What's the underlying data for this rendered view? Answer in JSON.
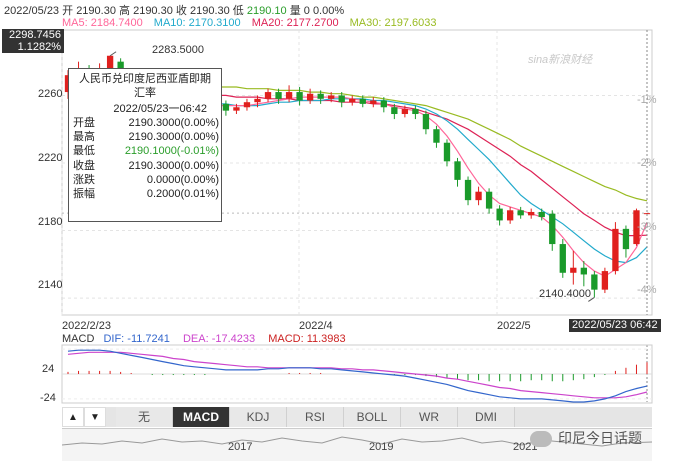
{
  "header": {
    "date": "2022/05/23",
    "open_label": "开",
    "open": "2190.30",
    "high_label": "高",
    "high": "2190.30",
    "close_label": "收",
    "close": "2190.30",
    "low_label": "低",
    "low": "2190.10",
    "vol_label": "量",
    "vol": "0",
    "pct": "0.00%"
  },
  "ma": {
    "ma5": {
      "label": "MA5: 2184.7400",
      "color": "#ff6699"
    },
    "ma10": {
      "label": "MA10: 2170.3100",
      "color": "#22aacc"
    },
    "ma20": {
      "label": "MA20: 2177.2700",
      "color": "#dd2255"
    },
    "ma30": {
      "label": "MA30: 2197.6033",
      "color": "#99bb22"
    }
  },
  "y_axis": {
    "top_value": "2298.7456",
    "top_pct": "1.1282%",
    "ticks": [
      "2260",
      "2220",
      "2180",
      "2140"
    ],
    "pct_ticks": [
      "-1%",
      "-2%",
      "-3%",
      "-4%"
    ]
  },
  "x_axis": {
    "ticks": [
      "2022/2/23",
      "2022/4",
      "2022/5"
    ],
    "last_date": "2022/05/23 06:42"
  },
  "annotations": {
    "max_label": "2283.5000",
    "min_label": "2140.4000"
  },
  "tooltip": {
    "title_line1": "人民币兑印度尼西亚盾即期",
    "title_line2": "汇率",
    "datetime": "2022/05/23一06:42",
    "rows": [
      {
        "k": "开盘",
        "v": "2190.3000(0.00%)"
      },
      {
        "k": "最高",
        "v": "2190.3000(0.00%)"
      },
      {
        "k": "最低",
        "v": "2190.1000(-0.01%)"
      },
      {
        "k": "收盘",
        "v": "2190.3000(0.00%)"
      },
      {
        "k": "涨跌",
        "v": "0.0000(0.00%)"
      },
      {
        "k": "振幅",
        "v": "0.2000(0.01%)"
      }
    ]
  },
  "macd": {
    "label": "MACD",
    "dif": "DIF: -11.7241",
    "dea": "DEA: -17.4233",
    "macd": "MACD: 11.3983",
    "ticks": [
      "24",
      "-24"
    ]
  },
  "tabs": {
    "prev": "▲",
    "next": "▼",
    "items": [
      "无",
      "MACD",
      "KDJ",
      "RSI",
      "BOLL",
      "WR",
      "DMI"
    ],
    "active": "MACD"
  },
  "overview": {
    "years": [
      "2017",
      "2019",
      "2021"
    ]
  },
  "watermark": "sina新浪财经",
  "wechat_label": "印尼今日话题",
  "colors": {
    "up": "#e0201e",
    "down": "#1a9a2a",
    "ma5": "#ff6699",
    "ma10": "#22aacc",
    "ma20": "#dd2255",
    "ma30": "#99bb22",
    "dif": "#3366cc",
    "dea": "#cc44cc"
  },
  "chart_data": {
    "type": "candlestick",
    "ylim": [
      2130,
      2298.7456
    ],
    "candles": [
      {
        "o": 2262,
        "c": 2272,
        "h": 2275,
        "l": 2258
      },
      {
        "o": 2270,
        "c": 2275,
        "h": 2280,
        "l": 2266
      },
      {
        "o": 2273,
        "c": 2268,
        "h": 2278,
        "l": 2264
      },
      {
        "o": 2268,
        "c": 2276,
        "h": 2279,
        "l": 2265
      },
      {
        "o": 2276,
        "c": 2283.5,
        "h": 2283.5,
        "l": 2271
      },
      {
        "o": 2280,
        "c": 2270,
        "h": 2282,
        "l": 2266
      },
      {
        "o": 2270,
        "c": 2262,
        "h": 2273,
        "l": 2258
      },
      {
        "o": 2262,
        "c": 2256,
        "h": 2265,
        "l": 2253
      },
      {
        "o": 2256,
        "c": 2254,
        "h": 2259,
        "l": 2251
      },
      {
        "o": 2254,
        "c": 2256,
        "h": 2258,
        "l": 2251
      },
      {
        "o": 2256,
        "c": 2252,
        "h": 2258,
        "l": 2249
      },
      {
        "o": 2252,
        "c": 2253,
        "h": 2256,
        "l": 2249
      },
      {
        "o": 2253,
        "c": 2256,
        "h": 2258,
        "l": 2251
      },
      {
        "o": 2256,
        "c": 2252,
        "h": 2258,
        "l": 2250
      },
      {
        "o": 2252,
        "c": 2255,
        "h": 2257,
        "l": 2250
      },
      {
        "o": 2255,
        "c": 2251,
        "h": 2257,
        "l": 2248
      },
      {
        "o": 2251,
        "c": 2253,
        "h": 2255,
        "l": 2249
      },
      {
        "o": 2253,
        "c": 2256,
        "h": 2258,
        "l": 2251
      },
      {
        "o": 2256,
        "c": 2258,
        "h": 2260,
        "l": 2253
      },
      {
        "o": 2258,
        "c": 2262,
        "h": 2264,
        "l": 2256
      },
      {
        "o": 2262,
        "c": 2258,
        "h": 2264,
        "l": 2255
      },
      {
        "o": 2258,
        "c": 2262,
        "h": 2266,
        "l": 2256
      },
      {
        "o": 2262,
        "c": 2257,
        "h": 2265,
        "l": 2254
      },
      {
        "o": 2257,
        "c": 2261,
        "h": 2264,
        "l": 2255
      },
      {
        "o": 2261,
        "c": 2258,
        "h": 2263,
        "l": 2255
      },
      {
        "o": 2258,
        "c": 2260,
        "h": 2262,
        "l": 2256
      },
      {
        "o": 2260,
        "c": 2256,
        "h": 2262,
        "l": 2253
      },
      {
        "o": 2256,
        "c": 2258,
        "h": 2260,
        "l": 2254
      },
      {
        "o": 2258,
        "c": 2255,
        "h": 2260,
        "l": 2253
      },
      {
        "o": 2255,
        "c": 2257,
        "h": 2259,
        "l": 2253
      },
      {
        "o": 2257,
        "c": 2253,
        "h": 2259,
        "l": 2250
      },
      {
        "o": 2253,
        "c": 2249,
        "h": 2255,
        "l": 2246
      },
      {
        "o": 2249,
        "c": 2252,
        "h": 2254,
        "l": 2247
      },
      {
        "o": 2252,
        "c": 2249,
        "h": 2254,
        "l": 2246
      },
      {
        "o": 2249,
        "c": 2240,
        "h": 2251,
        "l": 2237
      },
      {
        "o": 2240,
        "c": 2232,
        "h": 2242,
        "l": 2229
      },
      {
        "o": 2232,
        "c": 2221,
        "h": 2234,
        "l": 2218
      },
      {
        "o": 2221,
        "c": 2210,
        "h": 2223,
        "l": 2206
      },
      {
        "o": 2210,
        "c": 2198,
        "h": 2212,
        "l": 2195
      },
      {
        "o": 2198,
        "c": 2203,
        "h": 2206,
        "l": 2195
      },
      {
        "o": 2203,
        "c": 2193,
        "h": 2205,
        "l": 2190
      },
      {
        "o": 2193,
        "c": 2186,
        "h": 2195,
        "l": 2183
      },
      {
        "o": 2186,
        "c": 2192,
        "h": 2194,
        "l": 2184
      },
      {
        "o": 2192,
        "c": 2189,
        "h": 2194,
        "l": 2187
      },
      {
        "o": 2189,
        "c": 2191,
        "h": 2193,
        "l": 2187
      },
      {
        "o": 2191,
        "c": 2188,
        "h": 2193,
        "l": 2186
      },
      {
        "o": 2190,
        "c": 2172,
        "h": 2192,
        "l": 2168
      },
      {
        "o": 2172,
        "c": 2155,
        "h": 2175,
        "l": 2152
      },
      {
        "o": 2155,
        "c": 2158,
        "h": 2168,
        "l": 2148
      },
      {
        "o": 2158,
        "c": 2154,
        "h": 2162,
        "l": 2147
      },
      {
        "o": 2154,
        "c": 2145,
        "h": 2156,
        "l": 2140.4
      },
      {
        "o": 2145,
        "c": 2156,
        "h": 2158,
        "l": 2143
      },
      {
        "o": 2156,
        "c": 2181,
        "h": 2185,
        "l": 2154
      },
      {
        "o": 2181,
        "c": 2169,
        "h": 2183,
        "l": 2164
      },
      {
        "o": 2172,
        "c": 2192,
        "h": 2193,
        "l": 2171
      },
      {
        "o": 2190.3,
        "c": 2190.3,
        "h": 2190.3,
        "l": 2190.1
      }
    ],
    "ma5": [
      2262,
      2264,
      2266,
      2268,
      2270,
      2270,
      2268,
      2264,
      2260,
      2257,
      2255,
      2254,
      2254,
      2254,
      2254,
      2254,
      2254,
      2254,
      2255,
      2256,
      2257,
      2258,
      2259,
      2259,
      2259,
      2259,
      2259,
      2258,
      2257,
      2256,
      2255,
      2253,
      2252,
      2251,
      2248,
      2243,
      2236,
      2227,
      2217,
      2208,
      2201,
      2196,
      2194,
      2192,
      2190,
      2188,
      2183,
      2176,
      2168,
      2161,
      2156,
      2153,
      2157,
      2161,
      2170,
      2184.74
    ],
    "ma10": [
      2260,
      2261,
      2262,
      2263,
      2264,
      2265,
      2265,
      2264,
      2263,
      2261,
      2259,
      2258,
      2257,
      2256,
      2255,
      2255,
      2254,
      2254,
      2254,
      2255,
      2256,
      2256,
      2257,
      2257,
      2257,
      2258,
      2258,
      2258,
      2258,
      2257,
      2257,
      2256,
      2255,
      2254,
      2252,
      2249,
      2245,
      2240,
      2234,
      2228,
      2222,
      2215,
      2208,
      2201,
      2196,
      2192,
      2188,
      2184,
      2179,
      2174,
      2169,
      2165,
      2162,
      2161,
      2164,
      2170.31
    ],
    "ma20": [
      2258,
      2259,
      2259,
      2260,
      2261,
      2261,
      2262,
      2262,
      2262,
      2262,
      2262,
      2261,
      2261,
      2261,
      2260,
      2260,
      2259,
      2259,
      2259,
      2258,
      2258,
      2258,
      2257,
      2257,
      2257,
      2257,
      2256,
      2256,
      2256,
      2255,
      2255,
      2254,
      2253,
      2252,
      2250,
      2248,
      2246,
      2243,
      2240,
      2236,
      2232,
      2228,
      2224,
      2219,
      2215,
      2210,
      2205,
      2200,
      2195,
      2190,
      2186,
      2182,
      2179,
      2177,
      2177,
      2177.27
    ],
    "ma30": [
      2266,
      2266,
      2266,
      2266,
      2266,
      2266,
      2266,
      2266,
      2266,
      2266,
      2266,
      2266,
      2266,
      2265,
      2265,
      2265,
      2265,
      2264,
      2264,
      2264,
      2263,
      2263,
      2263,
      2262,
      2262,
      2261,
      2261,
      2260,
      2259,
      2259,
      2258,
      2257,
      2256,
      2255,
      2254,
      2252,
      2250,
      2248,
      2246,
      2243,
      2240,
      2237,
      2234,
      2230,
      2227,
      2224,
      2221,
      2218,
      2215,
      2212,
      2209,
      2206,
      2204,
      2201,
      2199,
      2197.6033
    ],
    "macd_bars": [
      2,
      3,
      3,
      3,
      3,
      2,
      1,
      0,
      -1,
      -1,
      -1,
      -1,
      -1,
      -1,
      0,
      0,
      0,
      0,
      0,
      0,
      0,
      1,
      1,
      1,
      1,
      0,
      0,
      0,
      0,
      0,
      0,
      -1,
      -1,
      -1,
      -2,
      -3,
      -4,
      -5,
      -6,
      -6,
      -7,
      -7,
      -7,
      -7,
      -6,
      -6,
      -7,
      -7,
      -6,
      -5,
      -3,
      -1,
      3,
      6,
      9,
      11.4
    ],
    "dif": [
      22,
      23,
      23,
      23,
      22,
      20,
      18,
      16,
      14,
      12,
      10,
      8,
      7,
      6,
      5,
      4,
      4,
      4,
      4,
      5,
      5,
      6,
      6,
      6,
      5,
      5,
      4,
      3,
      2,
      1,
      0,
      -1,
      -2,
      -4,
      -6,
      -8,
      -10,
      -13,
      -16,
      -18,
      -20,
      -22,
      -23,
      -24,
      -24,
      -24,
      -25,
      -26,
      -27,
      -27,
      -26,
      -24,
      -21,
      -17,
      -14,
      -11.7241
    ],
    "dea": [
      19,
      20,
      21,
      21,
      21,
      21,
      20,
      19,
      18,
      17,
      15,
      14,
      12,
      11,
      10,
      9,
      8,
      7,
      7,
      6,
      6,
      6,
      6,
      6,
      6,
      6,
      5,
      5,
      4,
      4,
      3,
      2,
      1,
      0,
      -1,
      -2,
      -4,
      -5,
      -7,
      -9,
      -11,
      -13,
      -14,
      -16,
      -17,
      -18,
      -19,
      -20,
      -21,
      -22,
      -23,
      -23,
      -23,
      -22,
      -20,
      -17.4233
    ]
  }
}
